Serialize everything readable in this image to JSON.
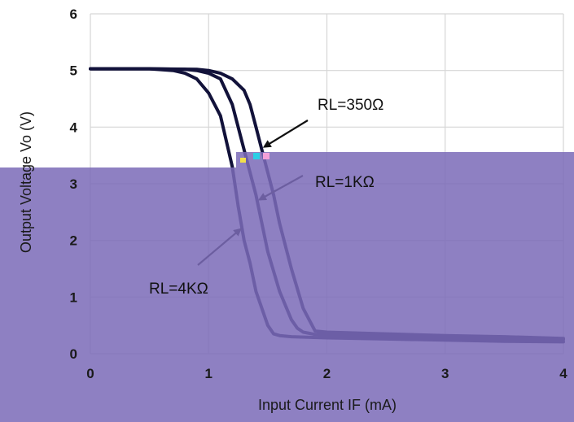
{
  "chart_data": {
    "type": "line",
    "title": "",
    "xlabel": "Input Current  IF  (mA)",
    "ylabel": "Output Voltage Vo  (V)",
    "xlim": [
      0,
      4
    ],
    "ylim": [
      0,
      6
    ],
    "xticks": [
      "0",
      "1",
      "2",
      "3",
      "4"
    ],
    "yticks": [
      "0",
      "1",
      "2",
      "3",
      "4",
      "5",
      "6"
    ],
    "grid": true,
    "colors": {
      "curve": "#12123a",
      "overlay": "#7b6bb8",
      "grid": "#d6d6d6"
    },
    "series": [
      {
        "name": "RL=350Ω",
        "x": [
          0,
          0.5,
          0.9,
          1.0,
          1.1,
          1.2,
          1.3,
          1.35,
          1.4,
          1.45,
          1.5,
          1.55,
          1.6,
          1.7,
          1.8,
          1.9,
          2.0,
          2.5,
          3.0,
          3.5,
          4.0
        ],
        "y": [
          5.03,
          5.03,
          5.02,
          5.0,
          4.95,
          4.85,
          4.65,
          4.4,
          4.0,
          3.6,
          3.2,
          2.8,
          2.3,
          1.5,
          0.8,
          0.4,
          0.38,
          0.35,
          0.32,
          0.3,
          0.27
        ]
      },
      {
        "name": "RL=1KΩ",
        "x": [
          0,
          0.5,
          0.8,
          0.9,
          1.0,
          1.1,
          1.2,
          1.3,
          1.35,
          1.4,
          1.5,
          1.6,
          1.7,
          1.75,
          1.8,
          1.9,
          2.0,
          2.5,
          3.0,
          3.5,
          4.0
        ],
        "y": [
          5.03,
          5.03,
          5.02,
          5.0,
          4.95,
          4.85,
          4.4,
          3.6,
          3.2,
          2.8,
          1.8,
          1.1,
          0.6,
          0.45,
          0.38,
          0.34,
          0.33,
          0.31,
          0.29,
          0.27,
          0.25
        ]
      },
      {
        "name": "RL=4KΩ",
        "x": [
          0,
          0.5,
          0.7,
          0.8,
          0.9,
          1.0,
          1.1,
          1.2,
          1.25,
          1.3,
          1.35,
          1.4,
          1.5,
          1.55,
          1.6,
          1.7,
          2.0,
          2.5,
          3.0,
          3.5,
          4.0
        ],
        "y": [
          5.03,
          5.03,
          5.0,
          4.95,
          4.85,
          4.6,
          4.2,
          3.3,
          2.6,
          2.0,
          1.6,
          1.1,
          0.5,
          0.35,
          0.32,
          0.3,
          0.28,
          0.26,
          0.24,
          0.22,
          0.21
        ]
      }
    ],
    "annotations": [
      {
        "text": "RL=350Ω",
        "series": "RL=350Ω"
      },
      {
        "text": "RL=1KΩ",
        "series": "RL=1KΩ"
      },
      {
        "text": "RL=4KΩ",
        "series": "RL=4KΩ"
      }
    ]
  }
}
